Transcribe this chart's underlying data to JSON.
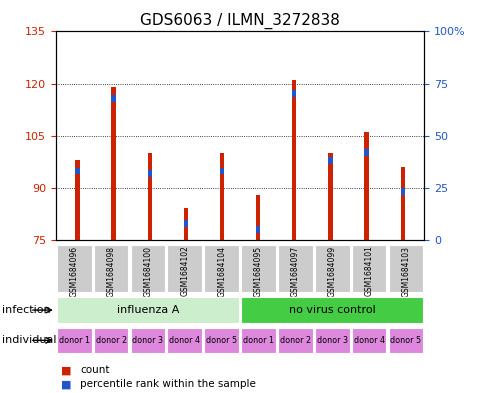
{
  "title": "GDS6063 / ILMN_3272838",
  "samples": [
    "GSM1684096",
    "GSM1684098",
    "GSM1684100",
    "GSM1684102",
    "GSM1684104",
    "GSM1684095",
    "GSM1684097",
    "GSM1684099",
    "GSM1684101",
    "GSM1684103"
  ],
  "counts": [
    98,
    119,
    100,
    84,
    100,
    88,
    121,
    100,
    106,
    96
  ],
  "percentile_ranks": [
    33,
    68,
    32,
    8,
    33,
    5,
    70,
    38,
    42,
    23
  ],
  "ylim_left": [
    75,
    135
  ],
  "yticks_left": [
    75,
    90,
    105,
    120,
    135
  ],
  "ylim_right": [
    0,
    100
  ],
  "yticks_right": [
    0,
    25,
    50,
    75,
    100
  ],
  "bar_color": "#cc2200",
  "blue_color": "#2255cc",
  "infection_groups": [
    {
      "label": "influenza A",
      "start": 0,
      "end": 5,
      "color": "#cceecc"
    },
    {
      "label": "no virus control",
      "start": 5,
      "end": 10,
      "color": "#44cc44"
    }
  ],
  "individual_labels": [
    "donor 1",
    "donor 2",
    "donor 3",
    "donor 4",
    "donor 5",
    "donor 1",
    "donor 2",
    "donor 3",
    "donor 4",
    "donor 5"
  ],
  "individual_color": "#dd88dd",
  "infection_label": "infection",
  "individual_label": "individual",
  "legend_count_label": "count",
  "legend_percentile_label": "percentile rank within the sample",
  "background_color": "#ffffff",
  "title_fontsize": 11,
  "tick_fontsize": 8,
  "label_fontsize": 8,
  "bar_width": 0.12,
  "blue_marker_size": 2.0
}
